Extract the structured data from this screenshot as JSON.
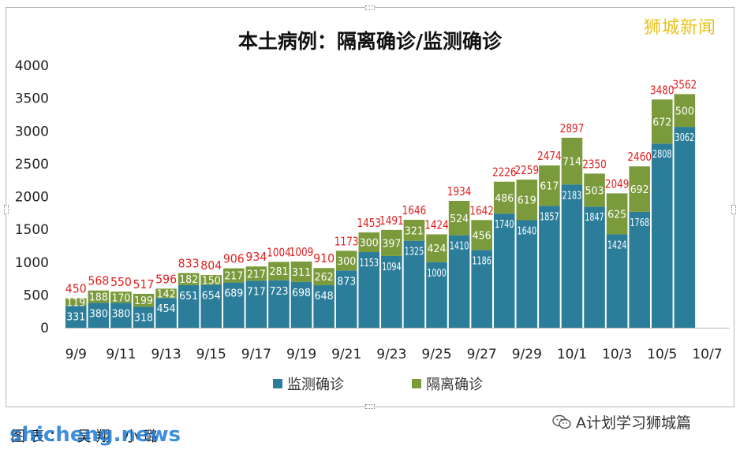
{
  "brand_logo": "狮城新闻",
  "footer_caption": "图表： 吴翔 小璐",
  "watermark": "shicheng.news",
  "wechat_attribution": "A计划学习狮城篇",
  "icons": {
    "wechat": "wechat-icon"
  },
  "chart_data": {
    "type": "bar",
    "stacked": true,
    "title": "本土病例：隔离确诊/监测确诊",
    "xlabel": "",
    "ylabel": "",
    "ylim": [
      0,
      4000
    ],
    "yticks": [
      "4000",
      "3500",
      "3000",
      "2500",
      "2000",
      "1500",
      "1000",
      "500",
      "0"
    ],
    "ytick_values": [
      4000,
      3500,
      3000,
      2500,
      2000,
      1500,
      1000,
      500,
      0
    ],
    "grid": false,
    "legend_position": "bottom",
    "x_tick_labels": [
      "9/9",
      "9/11",
      "9/13",
      "9/15",
      "9/17",
      "9/19",
      "9/21",
      "9/23",
      "9/25",
      "9/27",
      "9/29",
      "10/1",
      "10/3",
      "10/5",
      "10/7"
    ],
    "categories": [
      "9/9",
      "9/10",
      "9/11",
      "9/12",
      "9/13",
      "9/14",
      "9/15",
      "9/16",
      "9/17",
      "9/18",
      "9/19",
      "9/20",
      "9/21",
      "9/22",
      "9/23",
      "9/24",
      "9/25",
      "9/26",
      "9/27",
      "9/28",
      "9/29",
      "9/30",
      "10/1",
      "10/2",
      "10/3",
      "10/4",
      "10/5",
      "10/6"
    ],
    "series": [
      {
        "name": "监测确诊",
        "color": "#2b7d99",
        "values": [
          331,
          380,
          380,
          318,
          454,
          651,
          654,
          689,
          717,
          723,
          698,
          648,
          873,
          1153,
          1094,
          1325,
          1000,
          1410,
          1186,
          1740,
          1640,
          1857,
          2183,
          1847,
          1424,
          1768,
          2808,
          3062
        ]
      },
      {
        "name": "隔离确诊",
        "color": "#7a9a3b",
        "values": [
          119,
          188,
          170,
          199,
          142,
          182,
          150,
          217,
          217,
          281,
          311,
          262,
          300,
          300,
          397,
          321,
          424,
          524,
          456,
          486,
          619,
          617,
          714,
          503,
          625,
          692,
          672,
          500
        ]
      }
    ],
    "totals": [
      450,
      568,
      550,
      517,
      596,
      833,
      804,
      906,
      934,
      1004,
      1009,
      910,
      1173,
      1453,
      1491,
      1646,
      1424,
      1934,
      1642,
      2226,
      2259,
      2474,
      2897,
      2350,
      2049,
      2460,
      3480,
      3562
    ],
    "total_label_color": "#e02020"
  }
}
